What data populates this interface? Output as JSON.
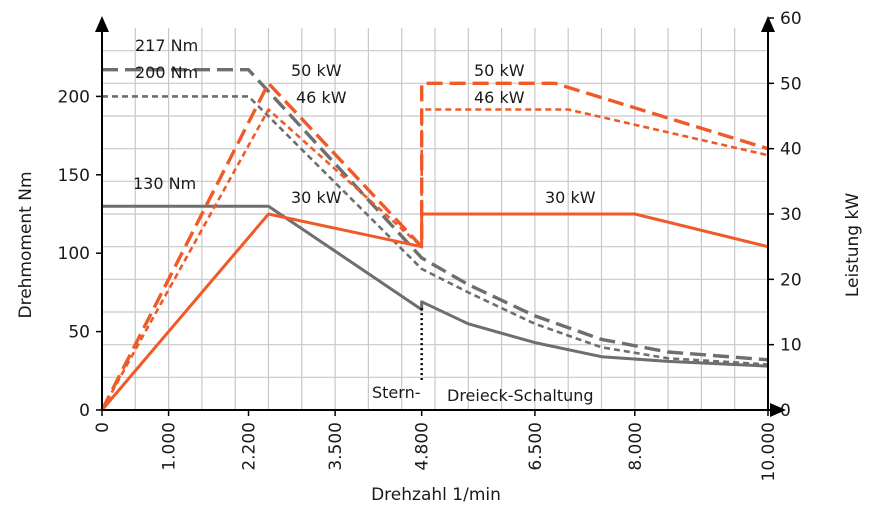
{
  "chart_data": {
    "type": "line",
    "title": "",
    "xlabel": "Drehzahl 1/min",
    "ylabel_left": "Drehmoment Nm",
    "ylabel_right": "Leistung kW",
    "xlim": [
      0,
      10000
    ],
    "ylim_left": [
      0,
      250
    ],
    "ylim_right": [
      0,
      60
    ],
    "x_ticks": [
      0,
      1000,
      2200,
      3500,
      4800,
      6500,
      8000,
      10000
    ],
    "x_tick_labels": [
      "0",
      "1.000",
      "2.200",
      "3.500",
      "4.800",
      "6.500",
      "8.000",
      "10.000"
    ],
    "y_left_ticks": [
      0,
      50,
      100,
      150,
      200
    ],
    "y_left_tick_labels": [
      "0",
      "50",
      "100",
      "150",
      "200"
    ],
    "y_right_ticks": [
      0,
      10,
      20,
      30,
      40,
      50,
      60
    ],
    "y_right_tick_labels": [
      "0",
      "10",
      "20",
      "30",
      "40",
      "50",
      "60"
    ],
    "grid": true,
    "legend": "none",
    "colors": {
      "torque": "#6e6e6e",
      "power": "#f05a28",
      "axis": "#000000",
      "grid": "#c8c8c8"
    },
    "series": [
      {
        "axis": "left",
        "style": "solid",
        "x": [
          0,
          2500,
          4800,
          4800,
          5500,
          6500,
          7500,
          8500,
          10000
        ],
        "y": [
          130,
          130,
          64,
          69,
          55,
          43,
          34,
          31,
          28
        ]
      },
      {
        "axis": "left",
        "style": "dashed",
        "x": [
          0,
          2200,
          4800,
          5500,
          6500,
          7500,
          8500,
          10000
        ],
        "y": [
          217,
          217,
          97,
          80,
          60,
          45,
          37,
          32
        ]
      },
      {
        "axis": "left",
        "style": "dotted",
        "x": [
          0,
          2200,
          4800,
          5500,
          6500,
          7500,
          8500,
          10000
        ],
        "y": [
          200,
          200,
          90,
          75,
          55,
          40,
          33,
          29
        ]
      },
      {
        "axis": "right",
        "style": "solid",
        "x": [
          0,
          2500,
          4800,
          4800,
          8000,
          10000
        ],
        "y": [
          0,
          30,
          25,
          30,
          30,
          25
        ]
      },
      {
        "axis": "right",
        "style": "dashed",
        "x": [
          0,
          2500,
          4800,
          4800,
          6800,
          10000
        ],
        "y": [
          0,
          50,
          25,
          50,
          50,
          40
        ]
      },
      {
        "axis": "right",
        "style": "dotted",
        "x": [
          0,
          2500,
          4800,
          4800,
          7000,
          10000
        ],
        "y": [
          0,
          46,
          25,
          46,
          46,
          39
        ]
      }
    ],
    "annotations": {
      "t217": "217 Nm",
      "t200": "200 Nm",
      "t130": "130 Nm",
      "p50a": "50 kW",
      "p46a": "46 kW",
      "p30a": "30 kW",
      "p50b": "50 kW",
      "p46b": "46 kW",
      "p30b": "30 kW",
      "stern": "Stern-",
      "dreieck": "Dreieck-Schaltung"
    }
  }
}
